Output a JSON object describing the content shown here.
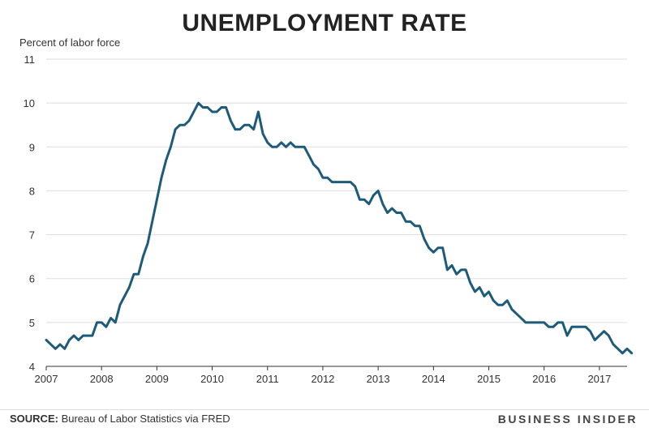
{
  "chart_data": {
    "type": "line",
    "title": "UNEMPLOYMENT RATE",
    "ylabel": "Percent of labor force",
    "xlabel": "",
    "ylim": [
      4,
      11
    ],
    "xlim": [
      2007,
      2017.5
    ],
    "yticks": [
      4,
      5,
      6,
      7,
      8,
      9,
      10,
      11
    ],
    "xticks": [
      2007,
      2008,
      2009,
      2010,
      2011,
      2012,
      2013,
      2014,
      2015,
      2016,
      2017
    ],
    "grid": true,
    "series": [
      {
        "name": "Unemployment rate",
        "start_year": 2007,
        "step_months": 1,
        "values": [
          4.6,
          4.5,
          4.4,
          4.5,
          4.4,
          4.6,
          4.7,
          4.6,
          4.7,
          4.7,
          4.7,
          5.0,
          5.0,
          4.9,
          5.1,
          5.0,
          5.4,
          5.6,
          5.8,
          6.1,
          6.1,
          6.5,
          6.8,
          7.3,
          7.8,
          8.3,
          8.7,
          9.0,
          9.4,
          9.5,
          9.5,
          9.6,
          9.8,
          10.0,
          9.9,
          9.9,
          9.8,
          9.8,
          9.9,
          9.9,
          9.6,
          9.4,
          9.4,
          9.5,
          9.5,
          9.4,
          9.8,
          9.3,
          9.1,
          9.0,
          9.0,
          9.1,
          9.0,
          9.1,
          9.0,
          9.0,
          9.0,
          8.8,
          8.6,
          8.5,
          8.3,
          8.3,
          8.2,
          8.2,
          8.2,
          8.2,
          8.2,
          8.1,
          7.8,
          7.8,
          7.7,
          7.9,
          8.0,
          7.7,
          7.5,
          7.6,
          7.5,
          7.5,
          7.3,
          7.3,
          7.2,
          7.2,
          6.9,
          6.7,
          6.6,
          6.7,
          6.7,
          6.2,
          6.3,
          6.1,
          6.2,
          6.2,
          5.9,
          5.7,
          5.8,
          5.6,
          5.7,
          5.5,
          5.4,
          5.4,
          5.5,
          5.3,
          5.2,
          5.1,
          5.0,
          5.0,
          5.0,
          5.0,
          5.0,
          4.9,
          4.9,
          5.0,
          5.0,
          4.7,
          4.9,
          4.9,
          4.9,
          4.9,
          4.8,
          4.6,
          4.7,
          4.8,
          4.7,
          4.5,
          4.4,
          4.3,
          4.4,
          4.3
        ]
      }
    ],
    "color": "#1e5b7a"
  },
  "footer": {
    "source_label": "SOURCE:",
    "source_text": " Bureau of Labor Statistics via FRED",
    "brand": "BUSINESS INSIDER"
  }
}
